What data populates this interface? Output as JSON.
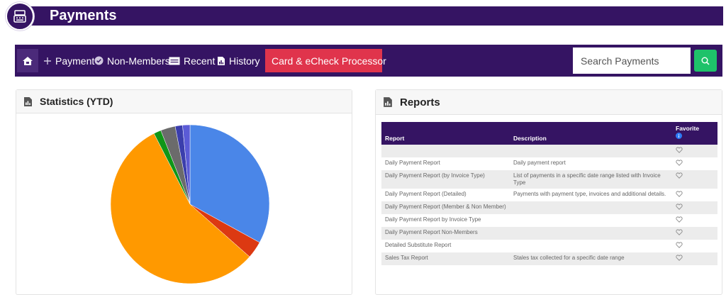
{
  "header": {
    "title": "Payments"
  },
  "toolbar": {
    "items": [
      {
        "label": "Payment",
        "icon": "plus-icon"
      },
      {
        "label": "Non-Members",
        "icon": "check-circle-icon"
      },
      {
        "label": "Recent",
        "icon": "list-card-icon"
      },
      {
        "label": "History",
        "icon": "report-icon"
      }
    ],
    "card_processor": "Card & eCheck Processor",
    "search_placeholder": "Search Payments"
  },
  "statistics": {
    "title": "Statistics (YTD)"
  },
  "chart_data": {
    "type": "pie",
    "slices": [
      {
        "value": 33.0,
        "color": "#4a86e8"
      },
      {
        "value": 3.5,
        "color": "#dc3912"
      },
      {
        "value": 56.0,
        "color": "#ff9900"
      },
      {
        "value": 1.5,
        "color": "#109618"
      },
      {
        "value": 3.0,
        "color": "#6b6b6b"
      },
      {
        "value": 1.5,
        "color": "#3b3eac"
      },
      {
        "value": 1.5,
        "color": "#5b5bd6"
      }
    ]
  },
  "reports": {
    "title": "Reports",
    "columns": {
      "report": "Report",
      "description": "Description",
      "favorite": "Favorite"
    },
    "rows": [
      {
        "report": "",
        "description": ""
      },
      {
        "report": "Daily Payment Report",
        "description": "Daily payment report"
      },
      {
        "report": "Daily Payment Report (by Invoice Type)",
        "description": "List of payments in a specific date range listed with Invoice Type"
      },
      {
        "report": "Daily Payment Report (Detailed)",
        "description": "Payments with payment type, invoices and additional details."
      },
      {
        "report": "Daily Payment Report (Member & Non Member)",
        "description": ""
      },
      {
        "report": "Daily Payment Report by Invoice Type",
        "description": ""
      },
      {
        "report": "Daily Payment Report Non-Members",
        "description": ""
      },
      {
        "report": "Detailed Substitute Report",
        "description": ""
      },
      {
        "report": "Sales Tax Report",
        "description": "Stales tax collected for a specific date range"
      }
    ]
  }
}
